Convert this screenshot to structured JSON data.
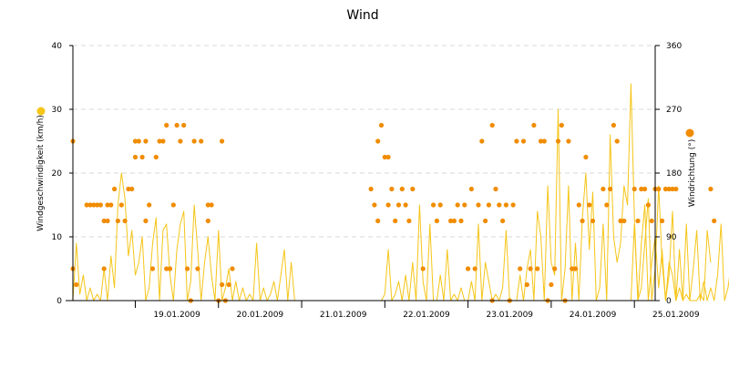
{
  "chart_data": {
    "type": "line",
    "title": "Wind",
    "x_tick_labels": [
      "19.01.2009",
      "20.01.2009",
      "21.01.2009",
      "22.01.2009",
      "23.01.2009",
      "24.01.2009",
      "25.01.2009"
    ],
    "x_range_days": [
      "18.01.2009 06:00",
      "25.01.2009 06:00"
    ],
    "y_left": {
      "label": "Windgeschwindigkeit (km/h)",
      "range": [
        0,
        40
      ],
      "ticks": [
        "0",
        "10",
        "20",
        "30",
        "40"
      ]
    },
    "y_right": {
      "label": "Windrichtung (°)",
      "range": [
        0,
        360
      ],
      "ticks": [
        "0",
        "90",
        "180",
        "270",
        "360"
      ]
    },
    "grid": "horizontal-dashed",
    "colors": {
      "speed": "#f5c518",
      "direction": "#f08c00",
      "grid": "#d8d8d8",
      "axis": "#000000"
    },
    "series": [
      {
        "name": "Windgeschwindigkeit (km/h)",
        "axis": "left",
        "kind": "line",
        "segments": [
          {
            "start": "18.01.2009 06:00",
            "step_hours": 1,
            "values": [
              0,
              9,
              1,
              4,
              0,
              2,
              0,
              1,
              0,
              5,
              0,
              7,
              2,
              15,
              20,
              16,
              7,
              11,
              4,
              6,
              10,
              0,
              2,
              9,
              13,
              0,
              11,
              12,
              4,
              0,
              8,
              12,
              14,
              0,
              3,
              15,
              8,
              0,
              6,
              10,
              4,
              0,
              11,
              0,
              2,
              5,
              0,
              3,
              0,
              2,
              0,
              1,
              0,
              9,
              0,
              2,
              0,
              1,
              3,
              0,
              4,
              8,
              0,
              6,
              0
            ]
          },
          {
            "start": "21.01.2009 20:00",
            "step_hours": 1,
            "values": [
              0,
              0,
              0,
              0,
              1,
              8,
              0,
              1,
              3,
              0,
              4,
              0,
              6,
              0,
              15,
              3,
              0,
              12,
              0,
              0,
              4,
              0,
              8,
              0,
              1,
              0,
              2,
              0,
              0,
              3,
              0,
              12,
              0,
              6,
              3,
              0,
              1,
              0,
              2,
              11,
              0,
              0,
              0,
              4,
              0,
              5,
              8,
              0,
              14,
              10,
              0,
              18,
              6,
              4,
              30,
              0,
              5,
              18,
              0,
              9,
              0,
              13,
              20,
              8,
              17,
              0,
              2,
              12,
              0,
              26,
              10,
              6,
              9,
              18,
              15,
              34,
              13,
              0,
              2,
              9,
              16,
              0,
              5,
              18,
              6,
              0,
              4,
              14,
              0,
              8,
              0,
              12,
              0,
              5,
              11,
              0,
              3,
              0,
              2,
              0,
              4,
              12,
              0,
              2,
              6,
              0,
              3,
              10,
              0,
              2,
              4,
              0,
              1,
              0
            ]
          },
          {
            "start": "24.01.2009 23:00",
            "step_hours": 1,
            "values": [
              0,
              12,
              0,
              9,
              15,
              0,
              6,
              10,
              2,
              8,
              0,
              6,
              4,
              0,
              2,
              0,
              1,
              0,
              0,
              0,
              1,
              0,
              11,
              6
            ]
          }
        ]
      },
      {
        "name": "Windrichtung (°)",
        "axis": "right",
        "kind": "scatter",
        "points": [
          [
            "18.01.2009 06:00",
            225
          ],
          [
            "18.01.2009 06:00",
            45
          ],
          [
            "18.01.2009 07:00",
            22.5
          ],
          [
            "18.01.2009 10:00",
            135
          ],
          [
            "18.01.2009 11:00",
            135
          ],
          [
            "18.01.2009 12:00",
            135
          ],
          [
            "18.01.2009 13:00",
            135
          ],
          [
            "18.01.2009 14:00",
            135
          ],
          [
            "18.01.2009 15:00",
            112.5
          ],
          [
            "18.01.2009 15:00",
            45
          ],
          [
            "18.01.2009 16:00",
            135
          ],
          [
            "18.01.2009 16:00",
            112.5
          ],
          [
            "18.01.2009 17:00",
            135
          ],
          [
            "18.01.2009 18:00",
            157.5
          ],
          [
            "18.01.2009 19:00",
            112.5
          ],
          [
            "18.01.2009 20:00",
            135
          ],
          [
            "18.01.2009 21:00",
            112.5
          ],
          [
            "18.01.2009 22:00",
            157.5
          ],
          [
            "18.01.2009 23:00",
            157.5
          ],
          [
            "19.01.2009 00:00",
            202.5
          ],
          [
            "19.01.2009 00:00",
            225
          ],
          [
            "19.01.2009 01:00",
            225
          ],
          [
            "19.01.2009 02:00",
            202.5
          ],
          [
            "19.01.2009 03:00",
            225
          ],
          [
            "19.01.2009 03:00",
            112.5
          ],
          [
            "19.01.2009 04:00",
            135
          ],
          [
            "19.01.2009 05:00",
            45
          ],
          [
            "19.01.2009 06:00",
            202.5
          ],
          [
            "19.01.2009 07:00",
            225
          ],
          [
            "19.01.2009 08:00",
            225
          ],
          [
            "19.01.2009 09:00",
            247.5
          ],
          [
            "19.01.2009 09:00",
            45
          ],
          [
            "19.01.2009 10:00",
            45
          ],
          [
            "19.01.2009 11:00",
            135
          ],
          [
            "19.01.2009 12:00",
            247.5
          ],
          [
            "19.01.2009 13:00",
            225
          ],
          [
            "19.01.2009 14:00",
            247.5
          ],
          [
            "19.01.2009 15:00",
            45
          ],
          [
            "19.01.2009 16:00",
            0
          ],
          [
            "19.01.2009 17:00",
            225
          ],
          [
            "19.01.2009 18:00",
            45
          ],
          [
            "19.01.2009 19:00",
            225
          ],
          [
            "19.01.2009 21:00",
            135
          ],
          [
            "19.01.2009 21:00",
            112.5
          ],
          [
            "19.01.2009 22:00",
            135
          ],
          [
            "20.01.2009 00:00",
            0
          ],
          [
            "20.01.2009 01:00",
            225
          ],
          [
            "20.01.2009 01:00",
            22.5
          ],
          [
            "20.01.2009 02:00",
            0
          ],
          [
            "20.01.2009 03:00",
            22.5
          ],
          [
            "20.01.2009 04:00",
            45
          ],
          [
            "21.01.2009 20:00",
            157.5
          ],
          [
            "21.01.2009 21:00",
            135
          ],
          [
            "21.01.2009 22:00",
            112.5
          ],
          [
            "21.01.2009 22:00",
            225
          ],
          [
            "21.01.2009 23:00",
            247.5
          ],
          [
            "22.01.2009 00:00",
            202.5
          ],
          [
            "22.01.2009 01:00",
            202.5
          ],
          [
            "22.01.2009 01:00",
            135
          ],
          [
            "22.01.2009 02:00",
            157.5
          ],
          [
            "22.01.2009 03:00",
            112.5
          ],
          [
            "22.01.2009 04:00",
            135
          ],
          [
            "22.01.2009 05:00",
            157.5
          ],
          [
            "22.01.2009 06:00",
            135
          ],
          [
            "22.01.2009 07:00",
            112.5
          ],
          [
            "22.01.2009 08:00",
            157.5
          ],
          [
            "22.01.2009 11:00",
            45
          ],
          [
            "22.01.2009 14:00",
            135
          ],
          [
            "22.01.2009 15:00",
            112.5
          ],
          [
            "22.01.2009 16:00",
            135
          ],
          [
            "22.01.2009 19:00",
            112.5
          ],
          [
            "22.01.2009 20:00",
            112.5
          ],
          [
            "22.01.2009 21:00",
            135
          ],
          [
            "22.01.2009 22:00",
            112.5
          ],
          [
            "22.01.2009 23:00",
            135
          ],
          [
            "23.01.2009 00:00",
            45
          ],
          [
            "23.01.2009 01:00",
            157.5
          ],
          [
            "23.01.2009 02:00",
            45
          ],
          [
            "23.01.2009 03:00",
            135
          ],
          [
            "23.01.2009 04:00",
            225
          ],
          [
            "23.01.2009 05:00",
            112.5
          ],
          [
            "23.01.2009 06:00",
            135
          ],
          [
            "23.01.2009 07:00",
            247.5
          ],
          [
            "23.01.2009 07:00",
            0
          ],
          [
            "23.01.2009 08:00",
            157.5
          ],
          [
            "23.01.2009 09:00",
            135
          ],
          [
            "23.01.2009 10:00",
            112.5
          ],
          [
            "23.01.2009 11:00",
            135
          ],
          [
            "23.01.2009 12:00",
            0
          ],
          [
            "23.01.2009 13:00",
            135
          ],
          [
            "23.01.2009 14:00",
            225
          ],
          [
            "23.01.2009 15:00",
            45
          ],
          [
            "23.01.2009 16:00",
            225
          ],
          [
            "23.01.2009 17:00",
            22.5
          ],
          [
            "23.01.2009 18:00",
            45
          ],
          [
            "23.01.2009 19:00",
            247.5
          ],
          [
            "23.01.2009 20:00",
            45
          ],
          [
            "23.01.2009 21:00",
            225
          ],
          [
            "23.01.2009 22:00",
            225
          ],
          [
            "23.01.2009 23:00",
            0
          ],
          [
            "24.01.2009 00:00",
            22.5
          ],
          [
            "24.01.2009 01:00",
            45
          ],
          [
            "24.01.2009 02:00",
            225
          ],
          [
            "24.01.2009 03:00",
            247.5
          ],
          [
            "24.01.2009 04:00",
            0
          ],
          [
            "24.01.2009 05:00",
            225
          ],
          [
            "24.01.2009 06:00",
            45
          ],
          [
            "24.01.2009 07:00",
            45
          ],
          [
            "24.01.2009 08:00",
            135
          ],
          [
            "24.01.2009 09:00",
            112.5
          ],
          [
            "24.01.2009 10:00",
            202.5
          ],
          [
            "24.01.2009 11:00",
            135
          ],
          [
            "24.01.2009 12:00",
            112.5
          ],
          [
            "24.01.2009 15:00",
            157.5
          ],
          [
            "24.01.2009 16:00",
            135
          ],
          [
            "24.01.2009 17:00",
            157.5
          ],
          [
            "24.01.2009 18:00",
            247.5
          ],
          [
            "24.01.2009 19:00",
            225
          ],
          [
            "24.01.2009 20:00",
            112.5
          ],
          [
            "24.01.2009 21:00",
            112.5
          ],
          [
            "25.01.2009 00:00",
            157.5
          ],
          [
            "25.01.2009 01:00",
            112.5
          ],
          [
            "25.01.2009 02:00",
            157.5
          ],
          [
            "25.01.2009 03:00",
            157.5
          ],
          [
            "25.01.2009 04:00",
            135
          ],
          [
            "25.01.2009 05:00",
            112.5
          ],
          [
            "25.01.2009 06:00",
            157.5
          ],
          [
            "25.01.2009 07:00",
            157.5
          ],
          [
            "25.01.2009 08:00",
            112.5
          ],
          [
            "25.01.2009 09:00",
            157.5
          ],
          [
            "25.01.2009 10:00",
            157.5
          ],
          [
            "25.01.2009 11:00",
            157.5
          ],
          [
            "25.01.2009 12:00",
            157.5
          ],
          [
            "25.01.2009 22:00",
            157.5
          ],
          [
            "25.01.2009 23:00",
            112.5
          ]
        ]
      }
    ]
  }
}
